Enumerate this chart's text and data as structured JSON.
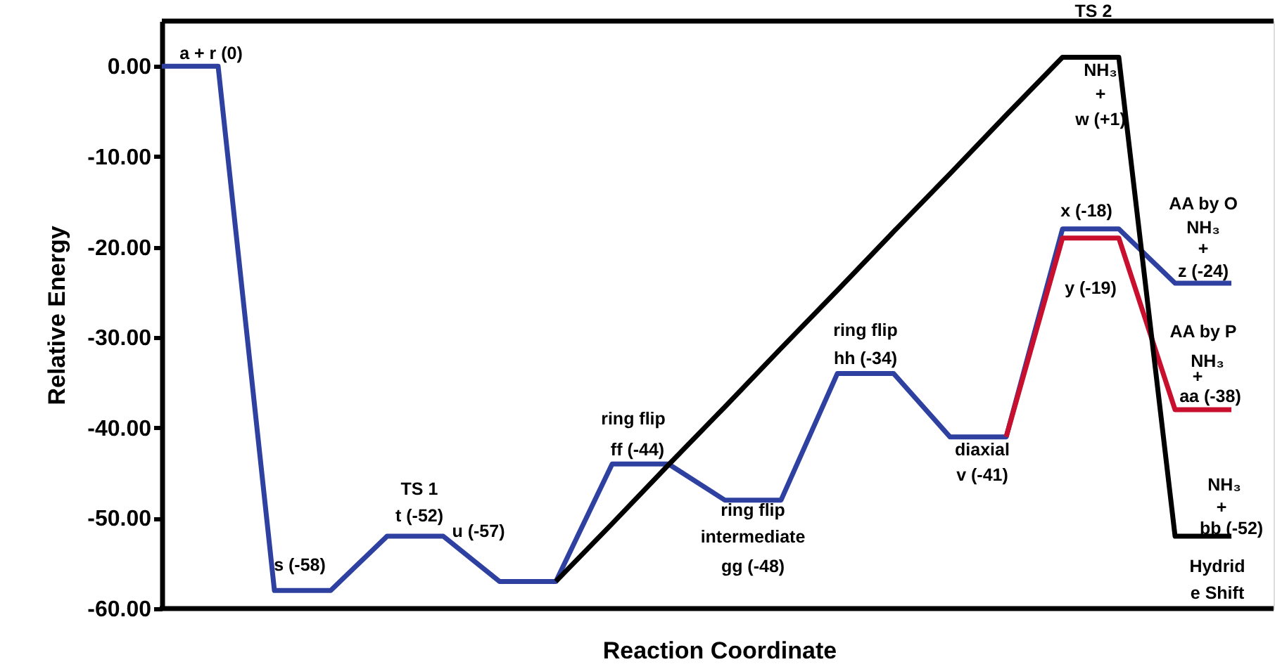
{
  "chart_data": {
    "type": "line",
    "xlabel": "Reaction Coordinate",
    "ylabel": "Relative Energy",
    "categories": [
      null,
      null,
      null,
      null,
      null,
      null,
      null,
      null,
      null,
      null,
      null,
      null,
      null,
      null,
      null,
      null,
      null,
      null,
      null,
      null
    ],
    "ylim": [
      -60,
      5
    ],
    "yticks": [
      {
        "value": -60,
        "label": "-60.00"
      },
      {
        "value": -50,
        "label": "-50.00"
      },
      {
        "value": -40,
        "label": "-40.00"
      },
      {
        "value": -30,
        "label": "-30.00"
      },
      {
        "value": -20,
        "label": "-20.00"
      },
      {
        "value": -10,
        "label": "-10.00"
      },
      {
        "value": 0,
        "label": "0.00"
      }
    ],
    "tick_labels": "y",
    "marker": "none",
    "line_style": "solid",
    "series": [
      {
        "color": "#2e40a0",
        "values": [
          0,
          0,
          -58,
          -58,
          -52,
          -52,
          -57,
          -57,
          -44,
          -44,
          -48,
          -48,
          -34,
          -34,
          -41,
          -41,
          -18,
          -18,
          -24,
          -24
        ]
      },
      {
        "color": "#c8102e",
        "values": [
          null,
          null,
          null,
          null,
          null,
          null,
          null,
          null,
          null,
          null,
          null,
          null,
          null,
          null,
          null,
          -41,
          -19,
          -19,
          -38,
          -38
        ]
      },
      {
        "color": "#000000",
        "values": [
          null,
          null,
          null,
          null,
          null,
          null,
          null,
          -57,
          -50.6,
          -44.1,
          -37.7,
          -31.2,
          -24.8,
          -18.3,
          -11.9,
          -5.4,
          1,
          1,
          -52,
          -52
        ]
      }
    ],
    "annotations": [
      "a + r (0)",
      "s (-58)",
      "TS 1",
      "t (-52)",
      "u (-57)",
      "ring flip",
      "ff (-44)",
      "ring flip",
      "intermediate",
      "gg (-48)",
      "ring flip",
      "hh (-34)",
      "diaxial",
      "v (-41)",
      "TS 2",
      "NH₃",
      "+",
      "w (+1)",
      "x (-18)",
      "y (-19)",
      "AA by O",
      "NH₃",
      "+",
      "z (-24)",
      "AA by P",
      "NH₃",
      "+",
      "aa (-38)",
      "NH₃",
      "+",
      "bb (-52)",
      "Hydrid",
      "e Shift"
    ]
  }
}
